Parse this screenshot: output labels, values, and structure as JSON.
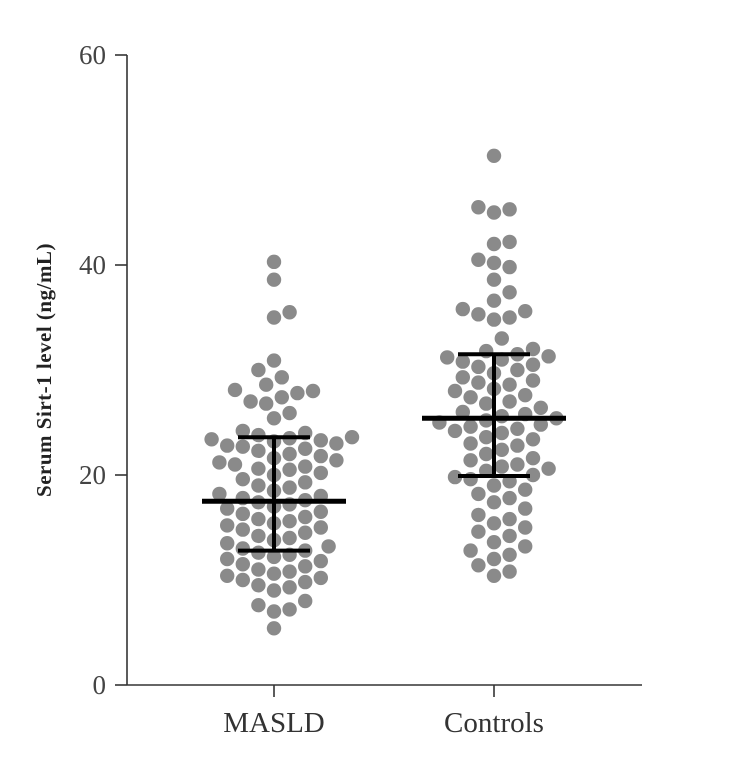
{
  "chart_data": {
    "type": "scatter",
    "subtype": "dot-plot-with-median-iqr",
    "title": "",
    "xlabel": "",
    "ylabel": "Serum Sirt-1 level (ng/mL)",
    "ylim": [
      0,
      60
    ],
    "yticks": [
      "0",
      "20",
      "40",
      "60"
    ],
    "categories": [
      "MASLD",
      "Controls"
    ],
    "grid": false,
    "point_color": "#8a8a8a",
    "summary_color": "#000000",
    "series": [
      {
        "category": "MASLD",
        "median": 17.5,
        "q1": 12.8,
        "q3": 23.6,
        "values": [
          40.3,
          38.6,
          35.5,
          35.0,
          30.9,
          30.0,
          29.3,
          28.6,
          28.1,
          28.0,
          27.8,
          27.4,
          27.0,
          26.8,
          25.9,
          25.4,
          24.2,
          24.0,
          23.8,
          23.6,
          23.5,
          23.4,
          23.3,
          23.2,
          23.0,
          22.8,
          22.7,
          22.5,
          22.3,
          22.0,
          21.8,
          21.6,
          21.4,
          21.2,
          21.0,
          20.8,
          20.6,
          20.5,
          20.2,
          20.0,
          19.6,
          19.3,
          19.0,
          18.8,
          18.5,
          18.2,
          18.0,
          17.8,
          17.6,
          17.4,
          17.2,
          17.0,
          16.8,
          16.5,
          16.3,
          16.0,
          15.8,
          15.6,
          15.4,
          15.2,
          15.0,
          14.8,
          14.5,
          14.2,
          14.0,
          13.8,
          13.5,
          13.2,
          13.0,
          12.8,
          12.6,
          12.4,
          12.2,
          12.0,
          11.8,
          11.5,
          11.3,
          11.0,
          10.8,
          10.6,
          10.4,
          10.2,
          10.0,
          9.8,
          9.5,
          9.3,
          9.0,
          8.0,
          7.6,
          7.2,
          7.0,
          5.4
        ]
      },
      {
        "category": "Controls",
        "median": 25.4,
        "q1": 19.9,
        "q3": 31.5,
        "values": [
          50.4,
          45.5,
          45.3,
          45.0,
          42.2,
          42.0,
          40.5,
          40.2,
          39.8,
          38.6,
          37.4,
          36.6,
          35.8,
          35.6,
          35.3,
          35.0,
          34.8,
          33.0,
          32.0,
          31.8,
          31.5,
          31.3,
          31.2,
          31.0,
          30.8,
          30.5,
          30.3,
          30.0,
          29.7,
          29.3,
          29.0,
          28.8,
          28.6,
          28.2,
          28.0,
          27.6,
          27.4,
          27.0,
          26.8,
          26.4,
          26.0,
          25.8,
          25.6,
          25.4,
          25.2,
          25.0,
          24.8,
          24.6,
          24.4,
          24.2,
          24.0,
          23.6,
          23.4,
          23.0,
          22.8,
          22.4,
          22.0,
          21.6,
          21.4,
          21.0,
          20.8,
          20.6,
          20.4,
          20.0,
          19.8,
          19.6,
          19.4,
          19.0,
          18.6,
          18.2,
          17.8,
          17.4,
          16.8,
          16.2,
          15.8,
          15.4,
          15.0,
          14.6,
          14.2,
          13.6,
          13.2,
          12.8,
          12.4,
          12.0,
          11.4,
          10.8,
          10.4
        ]
      }
    ]
  }
}
